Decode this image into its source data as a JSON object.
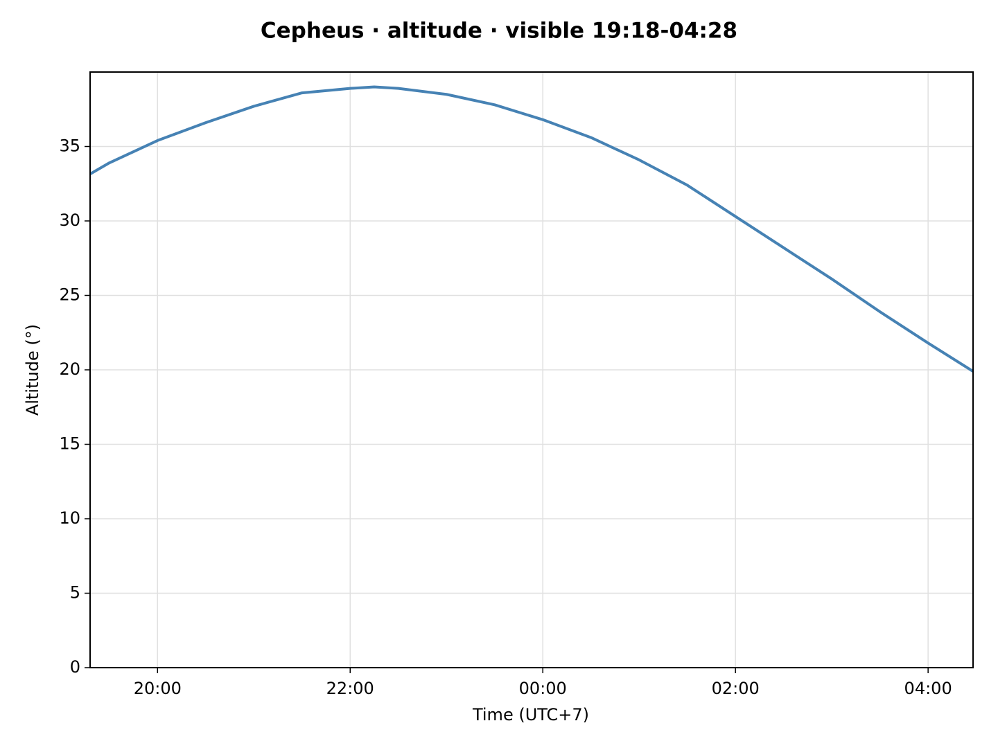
{
  "chart_data": {
    "type": "line",
    "title": "Cepheus · altitude · visible 19:18-04:28",
    "xlabel": "Time (UTC+7)",
    "ylabel": "Altitude (°)",
    "x": [
      "19:18",
      "19:30",
      "20:00",
      "20:30",
      "21:00",
      "21:30",
      "22:00",
      "22:15",
      "22:30",
      "23:00",
      "23:30",
      "00:00",
      "00:30",
      "01:00",
      "01:30",
      "02:00",
      "02:30",
      "03:00",
      "03:30",
      "04:00",
      "04:28"
    ],
    "values": [
      33.15,
      33.9,
      35.4,
      36.6,
      37.7,
      38.6,
      38.9,
      39.0,
      38.9,
      38.5,
      37.8,
      36.8,
      35.6,
      34.1,
      32.4,
      30.3,
      28.2,
      26.1,
      23.9,
      21.8,
      19.9
    ],
    "color": "#4682b4",
    "xlim": [
      "19:18",
      "04:28"
    ],
    "xticks": [
      "20:00",
      "22:00",
      "00:00",
      "02:00",
      "04:00"
    ],
    "ylim": [
      0,
      40
    ],
    "yticks": [
      0,
      5,
      10,
      15,
      20,
      25,
      30,
      35
    ],
    "grid": true
  }
}
